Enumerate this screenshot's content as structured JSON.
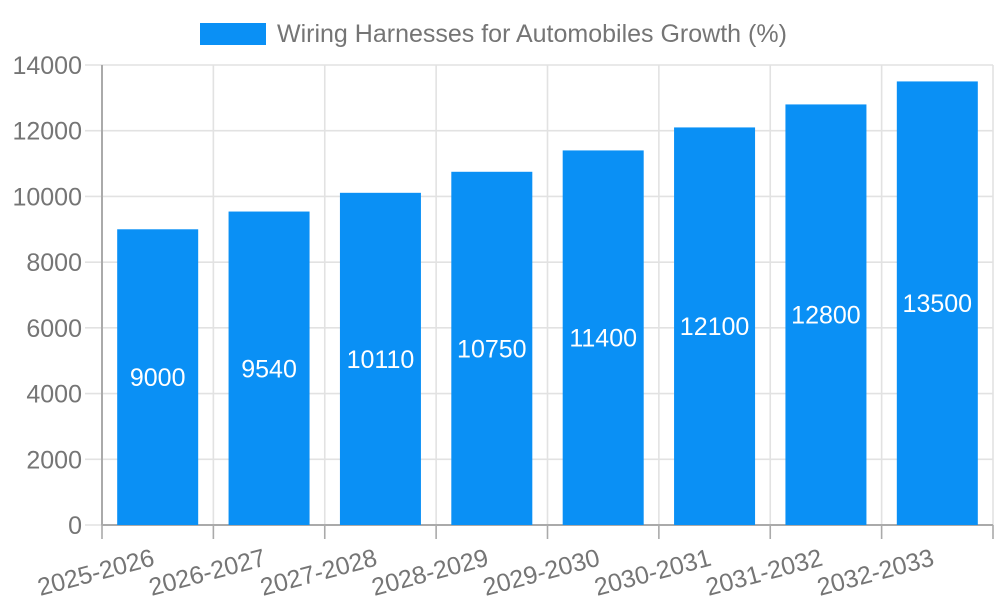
{
  "chart_data": {
    "type": "bar",
    "title": "Wiring Harnesses for Automobiles Growth (%)",
    "legend": {
      "position": "top",
      "items": [
        "Wiring Harnesses for Automobiles Growth (%)"
      ]
    },
    "categories": [
      "2025-2026",
      "2026-2027",
      "2027-2028",
      "2028-2029",
      "2029-2030",
      "2030-2031",
      "2031-2032",
      "2032-2033"
    ],
    "series": [
      {
        "name": "Wiring Harnesses for Automobiles Growth (%)",
        "values": [
          9000,
          9540,
          10110,
          10750,
          11400,
          12100,
          12800,
          13500
        ]
      }
    ],
    "value_labels": [
      "9000",
      "9540",
      "10110",
      "10750",
      "11400",
      "12100",
      "12800",
      "13500"
    ],
    "xlabel": "",
    "ylabel": "",
    "ylim": [
      0,
      14000
    ],
    "yticks": [
      0,
      2000,
      4000,
      6000,
      8000,
      10000,
      12000,
      14000
    ],
    "ytick_labels": [
      "0",
      "2000",
      "4000",
      "6000",
      "8000",
      "10000",
      "12000",
      "14000"
    ],
    "grid": true,
    "x_label_rotation_deg": 15,
    "colors": {
      "bar": "#0A90F5",
      "title_text": "#757575",
      "axis_label": "#757575",
      "value_label": "#FFFFFF",
      "axis_line": "#AAAAAA",
      "gridline": "#E2E2E2",
      "background": "#FFFFFF"
    }
  }
}
